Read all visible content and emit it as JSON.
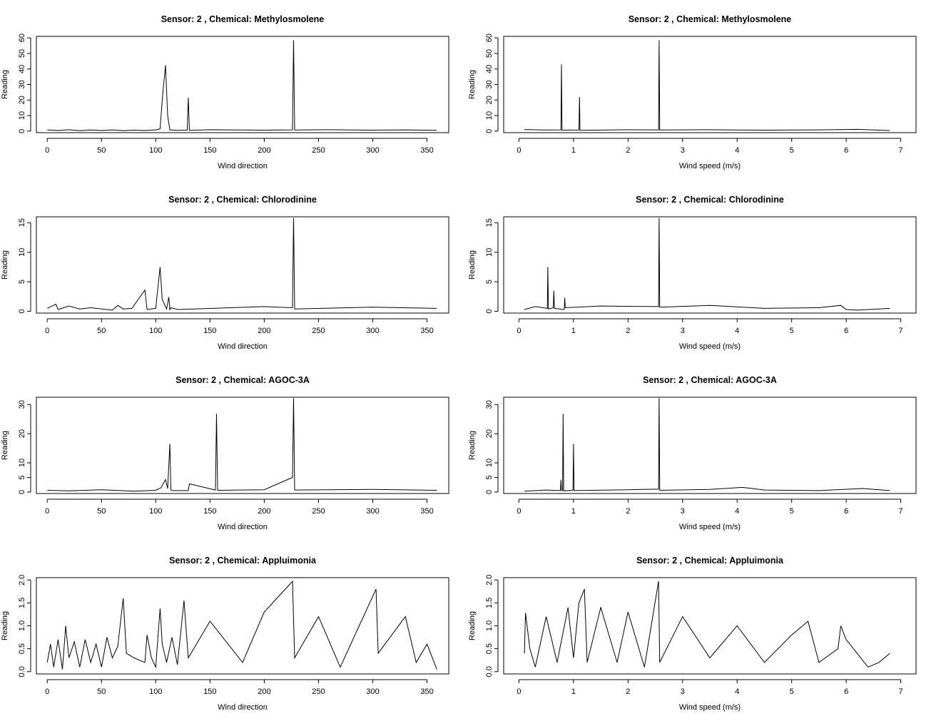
{
  "figure": {
    "panels_layout": "4 rows x 2 columns",
    "line_color": "#000000"
  },
  "chart_data": [
    {
      "type": "line",
      "title": "Sensor:  2 , Chemical:  Methylosmolene",
      "xlabel": "Wind direction",
      "ylabel": "Reading",
      "xlim": [
        -10,
        370
      ],
      "ylim": [
        -1,
        61
      ],
      "xticks": [
        0,
        50,
        100,
        150,
        200,
        250,
        300,
        350
      ],
      "yticks": [
        0,
        10,
        20,
        30,
        40,
        50,
        60
      ],
      "x": [
        0,
        10,
        20,
        30,
        40,
        50,
        60,
        70,
        80,
        90,
        100,
        104,
        106,
        109,
        111,
        113,
        120,
        129,
        130,
        131,
        150,
        200,
        226,
        227,
        228,
        260,
        300,
        330,
        359
      ],
      "y": [
        0.8,
        0.4,
        0.9,
        0.3,
        0.7,
        0.4,
        0.8,
        0.3,
        0.6,
        0.4,
        0.8,
        1.5,
        20,
        42.5,
        10,
        0.8,
        0.5,
        0.6,
        21.5,
        0.5,
        0.9,
        0.6,
        0.8,
        58.5,
        0.7,
        0.9,
        0.6,
        0.8,
        0.5
      ]
    },
    {
      "type": "line",
      "title": "Sensor:  2 , Chemical:  Methylosmolene",
      "xlabel": "Wind speed (m/s)",
      "ylabel": "Reading",
      "xlim": [
        -0.28,
        7.28
      ],
      "ylim": [
        -1,
        61
      ],
      "xticks": [
        0,
        1,
        2,
        3,
        4,
        5,
        6,
        7
      ],
      "yticks": [
        0,
        10,
        20,
        30,
        40,
        50,
        60
      ],
      "x": [
        0.1,
        0.5,
        0.77,
        0.78,
        0.79,
        1.1,
        1.11,
        1.12,
        2,
        2.56,
        2.57,
        2.58,
        3.5,
        4.5,
        5.5,
        6.2,
        6.8
      ],
      "y": [
        1,
        0.7,
        0.8,
        43,
        0.6,
        0.7,
        22,
        0.5,
        0.9,
        0.8,
        58.5,
        0.7,
        0.9,
        0.6,
        0.8,
        1.1,
        0.4
      ]
    },
    {
      "type": "line",
      "title": "Sensor:  2 , Chemical:  Chlorodinine",
      "xlabel": "Wind direction",
      "ylabel": "Reading",
      "xlim": [
        -10,
        370
      ],
      "ylim": [
        -0.3,
        16
      ],
      "xticks": [
        0,
        50,
        100,
        150,
        200,
        250,
        300,
        350
      ],
      "yticks": [
        0,
        5,
        10,
        15
      ],
      "x": [
        0,
        8,
        10,
        20,
        30,
        40,
        60,
        65,
        70,
        78,
        90,
        92,
        100,
        104,
        106,
        110,
        112,
        113,
        114,
        120,
        200,
        226,
        227,
        228,
        300,
        359
      ],
      "y": [
        0.5,
        1.2,
        0.3,
        0.9,
        0.4,
        0.6,
        0.2,
        1,
        0.4,
        0.5,
        3.6,
        0.3,
        0.5,
        7.5,
        2,
        0.4,
        2.4,
        0.3,
        0.6,
        0.3,
        0.8,
        0.6,
        15.8,
        0.4,
        0.7,
        0.5
      ]
    },
    {
      "type": "line",
      "title": "Sensor:  2 , Chemical:  Chlorodinine",
      "xlabel": "Wind speed (m/s)",
      "ylabel": "Reading",
      "xlim": [
        -0.28,
        7.28
      ],
      "ylim": [
        -0.3,
        16
      ],
      "xticks": [
        0,
        1,
        2,
        3,
        4,
        5,
        6,
        7
      ],
      "yticks": [
        0,
        5,
        10,
        15
      ],
      "x": [
        0.1,
        0.3,
        0.52,
        0.53,
        0.54,
        0.63,
        0.64,
        0.65,
        0.83,
        0.84,
        0.85,
        1.5,
        2.56,
        2.57,
        2.58,
        3.5,
        4.5,
        5.5,
        5.9,
        6.0,
        6.2,
        6.8
      ],
      "y": [
        0.3,
        0.8,
        0.5,
        7.5,
        0.4,
        0.6,
        3.5,
        0.5,
        0.3,
        2.3,
        0.6,
        0.9,
        0.8,
        15.8,
        0.7,
        1,
        0.5,
        0.6,
        1,
        0.3,
        0.2,
        0.5
      ]
    },
    {
      "type": "line",
      "title": "Sensor:  2 , Chemical:  AGOC-3A",
      "xlabel": "Wind direction",
      "ylabel": "Reading",
      "xlim": [
        -10,
        370
      ],
      "ylim": [
        -0.5,
        32.5
      ],
      "xticks": [
        0,
        50,
        100,
        150,
        200,
        250,
        300,
        350
      ],
      "yticks": [
        0,
        5,
        10,
        20,
        30
      ],
      "x": [
        0,
        20,
        50,
        80,
        100,
        105,
        109,
        111,
        113,
        114,
        115,
        130,
        131,
        155,
        156,
        157,
        200,
        226,
        227,
        228,
        300,
        359
      ],
      "y": [
        0.6,
        0.4,
        0.8,
        0.3,
        0.6,
        1.5,
        4.3,
        1.2,
        16.5,
        0.7,
        0.5,
        0.5,
        2.8,
        0.7,
        26.8,
        0.6,
        0.8,
        5,
        32.2,
        0.7,
        0.9,
        0.6
      ]
    },
    {
      "type": "line",
      "title": "Sensor:  2 , Chemical:  AGOC-3A",
      "xlabel": "Wind speed (m/s)",
      "ylabel": "Reading",
      "xlim": [
        -0.28,
        7.28
      ],
      "ylim": [
        -0.5,
        32.5
      ],
      "xticks": [
        0,
        1,
        2,
        3,
        4,
        5,
        6,
        7
      ],
      "yticks": [
        0,
        5,
        10,
        20,
        30
      ],
      "x": [
        0.1,
        0.5,
        0.76,
        0.77,
        0.78,
        0.8,
        0.81,
        0.82,
        0.99,
        1.0,
        1.01,
        2,
        2.56,
        2.57,
        2.58,
        3.5,
        4.1,
        4.5,
        5.5,
        6.3,
        6.8
      ],
      "y": [
        0.3,
        0.7,
        0.5,
        4.2,
        0.6,
        0.5,
        26.8,
        0.4,
        0.6,
        16.5,
        0.5,
        0.8,
        1,
        32.2,
        0.6,
        0.9,
        1.6,
        0.7,
        0.5,
        1.2,
        0.5
      ]
    },
    {
      "type": "line",
      "title": "Sensor:  2 , Chemical:  Appluimonia",
      "xlabel": "Wind direction",
      "ylabel": "Reading",
      "xlim": [
        -10,
        370
      ],
      "ylim": [
        -0.05,
        2.05
      ],
      "xticks": [
        0,
        50,
        100,
        150,
        200,
        250,
        300,
        350
      ],
      "yticks": [
        0.0,
        0.5,
        1.0,
        1.5,
        2.0
      ],
      "x": [
        0,
        3,
        6,
        10,
        14,
        17,
        20,
        25,
        30,
        35,
        40,
        45,
        50,
        55,
        60,
        65,
        70,
        73,
        80,
        90,
        92,
        96,
        100,
        104,
        106,
        110,
        115,
        120,
        126,
        130,
        150,
        180,
        200,
        226,
        228,
        250,
        270,
        303,
        305,
        330,
        340,
        350,
        359
      ],
      "y": [
        0.2,
        0.6,
        0.1,
        0.7,
        0.05,
        1.0,
        0.3,
        0.65,
        0.1,
        0.7,
        0.2,
        0.6,
        0.1,
        0.75,
        0.3,
        0.55,
        1.6,
        0.4,
        0.3,
        0.2,
        0.8,
        0.3,
        0.1,
        1.38,
        0.6,
        0.2,
        0.75,
        0.15,
        1.55,
        0.3,
        1.1,
        0.2,
        1.3,
        1.97,
        0.3,
        1.2,
        0.1,
        1.8,
        0.4,
        1.2,
        0.2,
        0.6,
        0.05
      ]
    },
    {
      "type": "line",
      "title": "Sensor:  2 , Chemical:  Appluimonia",
      "xlabel": "Wind speed (m/s)",
      "ylabel": "Reading",
      "xlim": [
        -0.28,
        7.28
      ],
      "ylim": [
        -0.05,
        2.05
      ],
      "xticks": [
        0,
        1,
        2,
        3,
        4,
        5,
        6,
        7
      ],
      "yticks": [
        0.0,
        0.5,
        1.0,
        1.5,
        2.0
      ],
      "x": [
        0.1,
        0.12,
        0.2,
        0.3,
        0.5,
        0.7,
        0.9,
        1.0,
        1.1,
        1.2,
        1.25,
        1.5,
        1.8,
        2.0,
        2.3,
        2.56,
        2.58,
        3.0,
        3.5,
        4.0,
        4.5,
        5.0,
        5.3,
        5.5,
        5.85,
        5.9,
        6.0,
        6.2,
        6.4,
        6.6,
        6.8
      ],
      "y": [
        0.4,
        1.28,
        0.5,
        0.1,
        1.2,
        0.2,
        1.4,
        0.3,
        1.5,
        1.8,
        0.2,
        1.4,
        0.2,
        1.3,
        0.1,
        1.97,
        0.2,
        1.2,
        0.3,
        1.0,
        0.2,
        0.8,
        1.1,
        0.2,
        0.5,
        1.0,
        0.7,
        0.4,
        0.1,
        0.2,
        0.4
      ]
    }
  ]
}
